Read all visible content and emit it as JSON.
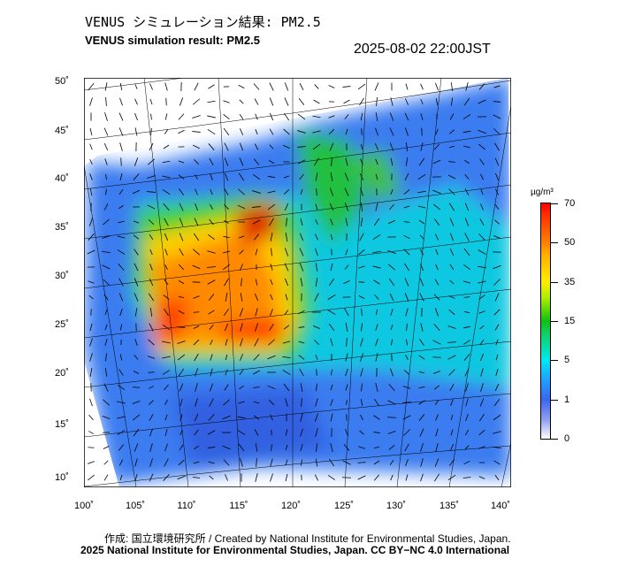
{
  "title_jp": "VENUS シミュレーション結果: PM2.5",
  "title_en": "VENUS simulation result: PM2.5",
  "timestamp": "2025-08-02 22:00JST",
  "lat_labels": [
    "50˚",
    "45˚",
    "40˚",
    "35˚",
    "30˚",
    "25˚",
    "20˚",
    "15˚",
    "10˚"
  ],
  "lon_labels": [
    "100˚",
    "105˚",
    "110˚",
    "115˚",
    "120˚",
    "125˚",
    "130˚",
    "135˚",
    "140˚"
  ],
  "colorbar": {
    "unit": "µg/m³",
    "ticks": [
      "70",
      "50",
      "35",
      "15",
      "5",
      "1",
      "0"
    ]
  },
  "credit_line1": "作成: 国立環境研究所 / Created by National Institute for Environmental Studies, Japan.",
  "credit_line2": "2025 National Institute for Environmental Studies, Japan. CC BY−NC 4.0 International"
}
